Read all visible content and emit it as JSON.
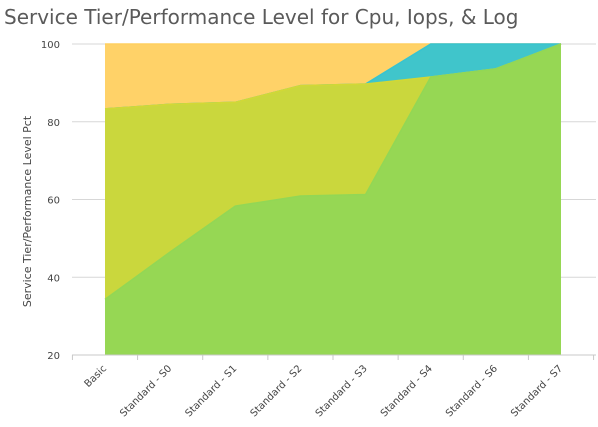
{
  "chart_data": {
    "type": "area",
    "title": "Service Tier/Performance Level for Cpu, Iops, & Log",
    "xlabel": "",
    "ylabel": "Service Tier/Performance Level Pct",
    "categories": [
      "Basic",
      "Standard - S0",
      "Standard - S1",
      "Standard - S2",
      "Standard - S3",
      "Standard - S4",
      "Standard - S6",
      "Standard - S7"
    ],
    "ylim": [
      20,
      100
    ],
    "yticks": [
      20,
      40,
      60,
      80,
      100
    ],
    "grid": true,
    "stacked": false,
    "series": [
      {
        "values": [
          100,
          100,
          100,
          100,
          100,
          100,
          100,
          100
        ],
        "color": "#FFD060"
      },
      {
        "values": [
          83.3,
          84.5,
          85.0,
          89.3,
          89.7,
          104.0,
          104.0,
          100
        ],
        "color": "#36C4D1"
      },
      {
        "values": [
          83.3,
          84.5,
          85.0,
          89.3,
          89.7,
          91.5,
          93.6,
          100
        ],
        "color": "#D2D835"
      },
      {
        "values": [
          34.3,
          46.5,
          58.3,
          60.9,
          61.3,
          91.5,
          93.6,
          100
        ],
        "color": "#92D755"
      }
    ]
  }
}
